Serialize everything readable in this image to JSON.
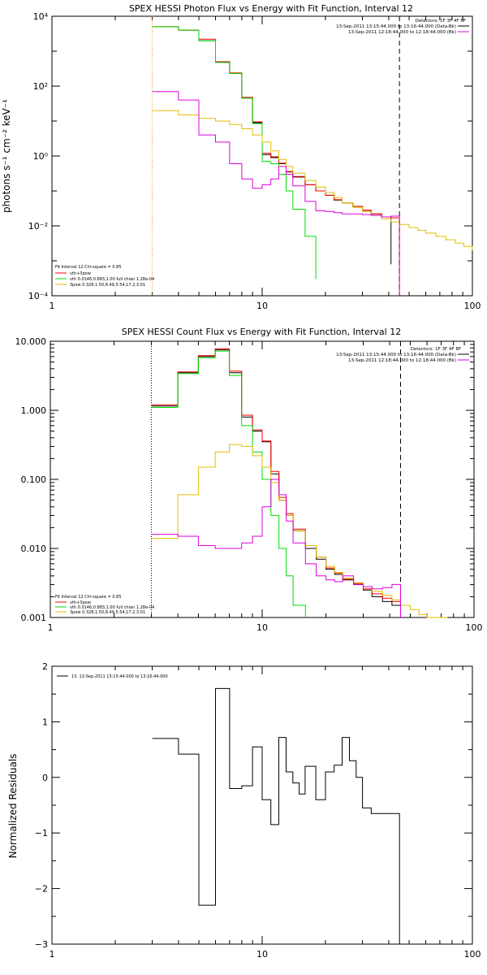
{
  "chart_data": [
    {
      "type": "line",
      "title": "SPEX HESSI Photon Flux vs Energy with Fit Function, Interval 12",
      "xlabel": "",
      "ylabel": "photons s⁻¹ cm⁻² keV⁻¹",
      "xlog": true,
      "ylog": true,
      "xlim": [
        1,
        100
      ],
      "ylim": [
        0.0001,
        10000
      ],
      "x_ticks": [
        "1",
        "10",
        "100"
      ],
      "y_ticks": [
        "10⁻⁴",
        "10⁻²",
        "10⁰",
        "10²",
        "10⁴"
      ],
      "y_tick_values": [
        0.0001,
        0.01,
        1,
        100,
        10000
      ],
      "vlines": [
        {
          "x": 3.0,
          "style": "dotted",
          "color": "#e0a000"
        },
        {
          "x": 45.0,
          "style": "dashed",
          "color": "#000000"
        }
      ],
      "legend_right": [
        "Detectors: 1F 3F 4F 8F",
        "13-Sep-2011 13:15:44.000 to 13:16:44.000 (Data-Bk)",
        "13-Sep-2011 12:18:44.000 to 12:18:44.000 (Bk)"
      ],
      "legend_left": [
        "Fit Interval 12    Chi-square = 0.85",
        "vth+3pow",
        "vth 0.0146,0.883,1.00  full chian 1.28e-04",
        "3pow 0.328,1.50,8.49,5.54,17.2,3.01"
      ],
      "series": [
        {
          "name": "13-Sep-2011 13:15:44.000 to 13:16:44.000 (Data-Bk)",
          "color": "#000000",
          "step": true,
          "x": [
            4,
            5,
            6,
            7,
            8,
            9,
            10,
            11,
            12,
            13,
            14,
            16,
            18,
            20,
            22,
            24,
            27,
            30,
            33,
            37,
            41
          ],
          "y": [
            4000,
            2000,
            480,
            230,
            45,
            9,
            1.1,
            0.9,
            0.6,
            0.35,
            0.25,
            0.15,
            0.1,
            0.075,
            0.055,
            0.045,
            0.036,
            0.028,
            0.022,
            0.018,
            0.0008
          ]
        },
        {
          "name": "vth+3pow",
          "color": "#ff0000",
          "step": true,
          "x": [
            3,
            4,
            5,
            6,
            7,
            8,
            9,
            10,
            11,
            12,
            13,
            14,
            16,
            18,
            20,
            22,
            24,
            27,
            30,
            33,
            37,
            41,
            45
          ],
          "y": [
            5000,
            4000,
            2200,
            500,
            240,
            48,
            9.5,
            1.2,
            0.95,
            0.62,
            0.36,
            0.26,
            0.15,
            0.1,
            0.075,
            0.056,
            0.045,
            0.036,
            0.028,
            0.022,
            0.018,
            0.017,
            0.016
          ]
        },
        {
          "name": "vth",
          "color": "#00dd00",
          "step": true,
          "x": [
            3,
            4,
            5,
            6,
            7,
            8,
            9,
            10,
            11,
            12,
            13,
            14,
            16,
            18
          ],
          "y": [
            5000,
            4000,
            2000,
            480,
            230,
            45,
            8.5,
            0.7,
            0.6,
            0.3,
            0.1,
            0.03,
            0.005,
            0.0003
          ]
        },
        {
          "name": "3pow",
          "color": "#e0c000",
          "step": true,
          "x": [
            3,
            4,
            5,
            6,
            7,
            8,
            9,
            10,
            11,
            12,
            13,
            14,
            16,
            18,
            20,
            22,
            24,
            27,
            30,
            33,
            37,
            41,
            45,
            50,
            55,
            60,
            67,
            75,
            83,
            91,
            100
          ],
          "y": [
            20,
            15,
            12,
            10,
            8,
            6,
            4,
            2.5,
            1.4,
            0.8,
            0.5,
            0.32,
            0.2,
            0.13,
            0.09,
            0.065,
            0.045,
            0.034,
            0.026,
            0.02,
            0.016,
            0.013,
            0.011,
            0.009,
            0.0075,
            0.0062,
            0.005,
            0.004,
            0.0032,
            0.0026,
            0.002
          ]
        },
        {
          "name": "13-Sep-2011 12:18:44.000 to 12:18:44.000 (Bk)",
          "color": "#dd00dd",
          "step": true,
          "x": [
            3,
            4,
            5,
            6,
            7,
            8,
            9,
            10,
            11,
            12,
            13,
            14,
            16,
            18,
            20,
            22,
            24,
            27,
            30,
            33,
            37,
            41,
            45
          ],
          "y": [
            70,
            40,
            4,
            2.5,
            0.6,
            0.22,
            0.12,
            0.15,
            0.22,
            0.5,
            0.3,
            0.14,
            0.05,
            0.027,
            0.026,
            0.024,
            0.022,
            0.022,
            0.021,
            0.02,
            0.018,
            0.019,
            0.0001
          ]
        }
      ]
    },
    {
      "type": "line",
      "title": "SPEX HESSI Count Flux vs Energy with Fit Function, Interval 12",
      "xlabel": "",
      "ylabel": "",
      "xlog": true,
      "ylog": true,
      "xlim": [
        1,
        100
      ],
      "ylim": [
        0.001,
        10
      ],
      "x_ticks": [
        "1",
        "10",
        "100"
      ],
      "y_ticks": [
        "0.001",
        "0.010",
        "0.100",
        "1.000",
        "10.000"
      ],
      "y_tick_values": [
        0.001,
        0.01,
        0.1,
        1,
        10
      ],
      "vlines": [
        {
          "x": 3.0,
          "style": "dotted",
          "color": "#000000"
        },
        {
          "x": 45.0,
          "style": "dashed",
          "color": "#000000"
        }
      ],
      "legend_right": [
        "Detectors: 1F 3F 4F 8F",
        "13-Sep-2011 13:15:44.000 to 13:16:44.000 (Data-Bk)",
        "13-Sep-2011 12:18:44.000 to 12:18:44.000 (Bk)"
      ],
      "legend_left": [
        "Fit Interval 12    Chi-square = 0.85",
        "vth+3pow",
        "vth 0.0146,0.883,1.00  full chian 1.28e-04",
        "3pow 0.328,1.50,8.49,5.54,17.2,3.01"
      ],
      "series": [
        {
          "name": "13-Sep-2011 13:15:44.000 to 13:16:44.000 (Data-Bk)",
          "color": "#000000",
          "step": true,
          "x": [
            3,
            4,
            5,
            6,
            7,
            8,
            9,
            10,
            11,
            12,
            13,
            14,
            16,
            18,
            20,
            22,
            24,
            27,
            30,
            33,
            37,
            41,
            45
          ],
          "y": [
            1.15,
            3.5,
            6,
            7.5,
            3.5,
            0.8,
            0.5,
            0.35,
            0.12,
            0.05,
            0.03,
            0.018,
            0.01,
            0.007,
            0.005,
            0.0042,
            0.0035,
            0.003,
            0.0025,
            0.002,
            0.0017,
            0.0015,
            0.001
          ]
        },
        {
          "name": "vth+3pow",
          "color": "#ff0000",
          "step": true,
          "x": [
            3,
            4,
            5,
            6,
            7,
            8,
            9,
            10,
            11,
            12,
            13,
            14,
            16,
            18,
            20,
            22,
            24,
            27,
            30,
            33,
            37,
            41,
            45
          ],
          "y": [
            1.2,
            3.6,
            6.2,
            7.8,
            3.7,
            0.85,
            0.52,
            0.36,
            0.13,
            0.055,
            0.032,
            0.019,
            0.011,
            0.0075,
            0.0052,
            0.0044,
            0.0036,
            0.0031,
            0.0026,
            0.0022,
            0.0019,
            0.0017,
            0.0016
          ]
        },
        {
          "name": "vth",
          "color": "#00dd00",
          "step": true,
          "x": [
            3,
            4,
            5,
            6,
            7,
            8,
            9,
            10,
            11,
            12,
            13,
            14,
            16
          ],
          "y": [
            1.1,
            3.4,
            5.8,
            7.2,
            3.2,
            0.6,
            0.25,
            0.1,
            0.03,
            0.01,
            0.004,
            0.0015,
            0.0008
          ]
        },
        {
          "name": "3pow",
          "color": "#e0c000",
          "step": true,
          "x": [
            3,
            4,
            5,
            6,
            7,
            8,
            9,
            10,
            11,
            12,
            13,
            14,
            16,
            18,
            20,
            22,
            24,
            27,
            30,
            33,
            37,
            41,
            45,
            50,
            55,
            60,
            67,
            75
          ],
          "y": [
            0.014,
            0.06,
            0.15,
            0.25,
            0.32,
            0.3,
            0.22,
            0.15,
            0.09,
            0.05,
            0.03,
            0.018,
            0.011,
            0.0075,
            0.0055,
            0.0045,
            0.0037,
            0.0032,
            0.0028,
            0.0024,
            0.0021,
            0.0018,
            0.0015,
            0.0013,
            0.0011,
            0.001,
            0.001,
            0.001
          ]
        },
        {
          "name": "13-Sep-2011 12:18:44.000 to 12:18:44.000 (Bk)",
          "color": "#dd00dd",
          "step": true,
          "x": [
            3,
            4,
            5,
            6,
            7,
            8,
            9,
            10,
            11,
            12,
            13,
            14,
            16,
            18,
            20,
            22,
            24,
            27,
            30,
            33,
            37,
            41,
            45
          ],
          "y": [
            0.016,
            0.015,
            0.011,
            0.01,
            0.01,
            0.012,
            0.015,
            0.04,
            0.1,
            0.06,
            0.025,
            0.012,
            0.006,
            0.004,
            0.0035,
            0.0033,
            0.004,
            0.003,
            0.0028,
            0.0026,
            0.0027,
            0.003,
            0.001
          ]
        }
      ]
    },
    {
      "type": "line",
      "title": "",
      "xlabel": "",
      "ylabel": "Normalized Residuals",
      "xlog": true,
      "ylog": false,
      "xlim": [
        1,
        100
      ],
      "ylim": [
        -3,
        2
      ],
      "x_ticks": [
        "1",
        "10",
        "100"
      ],
      "y_ticks": [
        "−3",
        "−2",
        "−1",
        "0",
        "1",
        "2"
      ],
      "y_tick_values": [
        -3,
        -2,
        -1,
        0,
        1,
        2
      ],
      "legend_left": [
        "13. 13-Sep-2011 13:15:44.000 to 13:16:44.000"
      ],
      "series": [
        {
          "name": "13. 13-Sep-2011 13:15:44.000 to 13:16:44.000",
          "color": "#000000",
          "step": true,
          "x": [
            3,
            4,
            5,
            6,
            7,
            8,
            9,
            10,
            11,
            12,
            13,
            14,
            15,
            16,
            18,
            20,
            22,
            24,
            26,
            28,
            30,
            33,
            36,
            40,
            45
          ],
          "y": [
            0.7,
            0.42,
            -2.3,
            1.6,
            -0.2,
            -0.15,
            0.55,
            -0.4,
            -0.85,
            0.72,
            0.1,
            -0.1,
            -0.3,
            0.2,
            -0.4,
            0.1,
            0.22,
            0.72,
            0.3,
            0.0,
            -0.55,
            -0.65,
            -0.65,
            -0.65,
            -3.0
          ]
        }
      ]
    }
  ]
}
